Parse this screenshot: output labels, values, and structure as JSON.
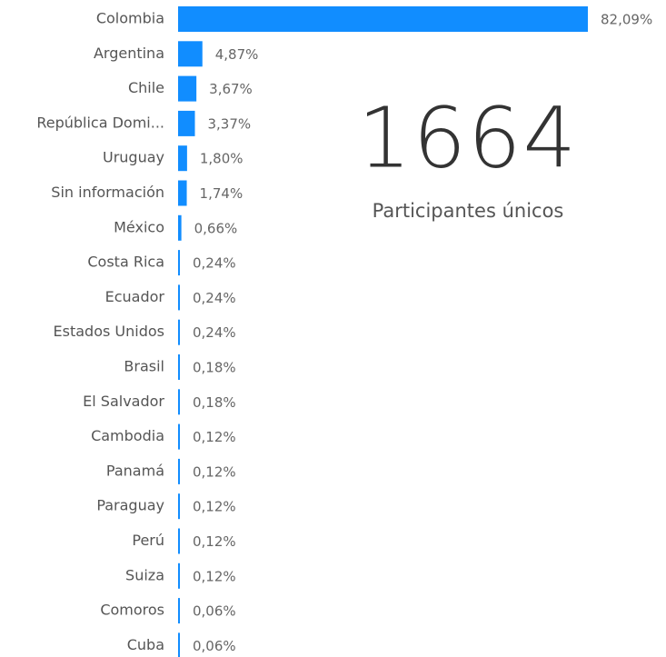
{
  "chart_data": {
    "type": "bar",
    "categories": [
      "Colombia",
      "Argentina",
      "Chile",
      "República Domi...",
      "Uruguay",
      "Sin información",
      "México",
      "Costa Rica",
      "Ecuador",
      "Estados Unidos",
      "Brasil",
      "El Salvador",
      "Cambodia",
      "Panamá",
      "Paraguay",
      "Perú",
      "Suiza",
      "Comoros",
      "Cuba"
    ],
    "values": [
      82.09,
      4.87,
      3.67,
      3.37,
      1.8,
      1.74,
      0.66,
      0.24,
      0.24,
      0.24,
      0.18,
      0.18,
      0.12,
      0.12,
      0.12,
      0.12,
      0.12,
      0.06,
      0.06
    ],
    "value_labels": [
      "82,09%",
      "4,87%",
      "3,67%",
      "3,37%",
      "1,80%",
      "1,74%",
      "0,66%",
      "0,24%",
      "0,24%",
      "0,24%",
      "0,18%",
      "0,18%",
      "0,12%",
      "0,12%",
      "0,12%",
      "0,12%",
      "0,12%",
      "0,06%",
      "0,06%"
    ],
    "color": "#118dff"
  },
  "card": {
    "value": 1664,
    "label": "Participantes únicos"
  }
}
